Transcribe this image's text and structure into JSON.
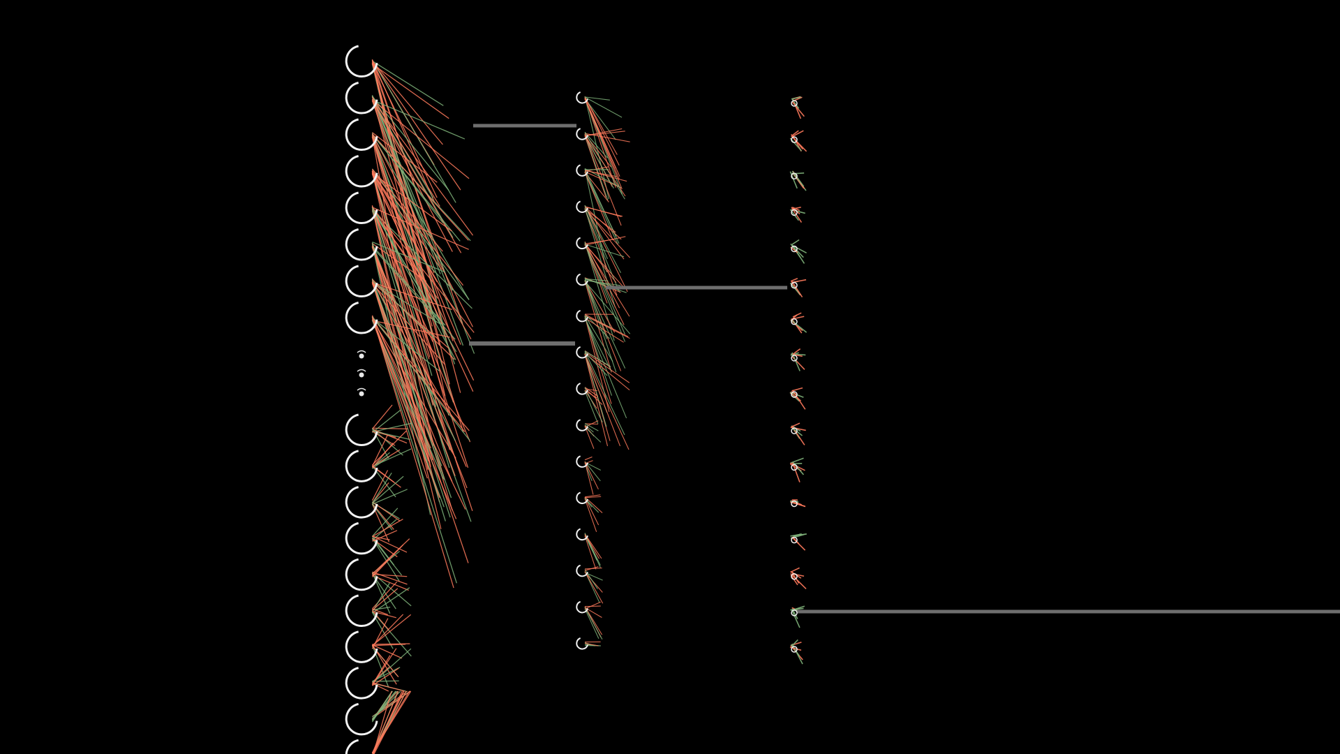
{
  "diagram": {
    "type": "neural-network",
    "layers": [
      {
        "name": "input-layer",
        "visible_nodes": 18,
        "has_ellipsis": true
      },
      {
        "name": "hidden-layer",
        "visible_nodes": 16,
        "has_ellipsis": false
      },
      {
        "name": "output-layer",
        "visible_nodes": 16,
        "has_ellipsis": false
      }
    ],
    "colors": {
      "background": "#000000",
      "node_outline": "#f2f2f2",
      "positive_weight": "#ff7a5c",
      "negative_weight": "#7fb37a",
      "skip_connection": "#6e6e6e"
    },
    "skip_connections": [
      {
        "from": "input-layer",
        "to": "hidden-layer"
      },
      {
        "from": "input-layer",
        "to": "hidden-layer"
      },
      {
        "from": "hidden-layer",
        "to": "output-layer"
      },
      {
        "from": "output-layer",
        "to": "right-edge"
      }
    ]
  }
}
